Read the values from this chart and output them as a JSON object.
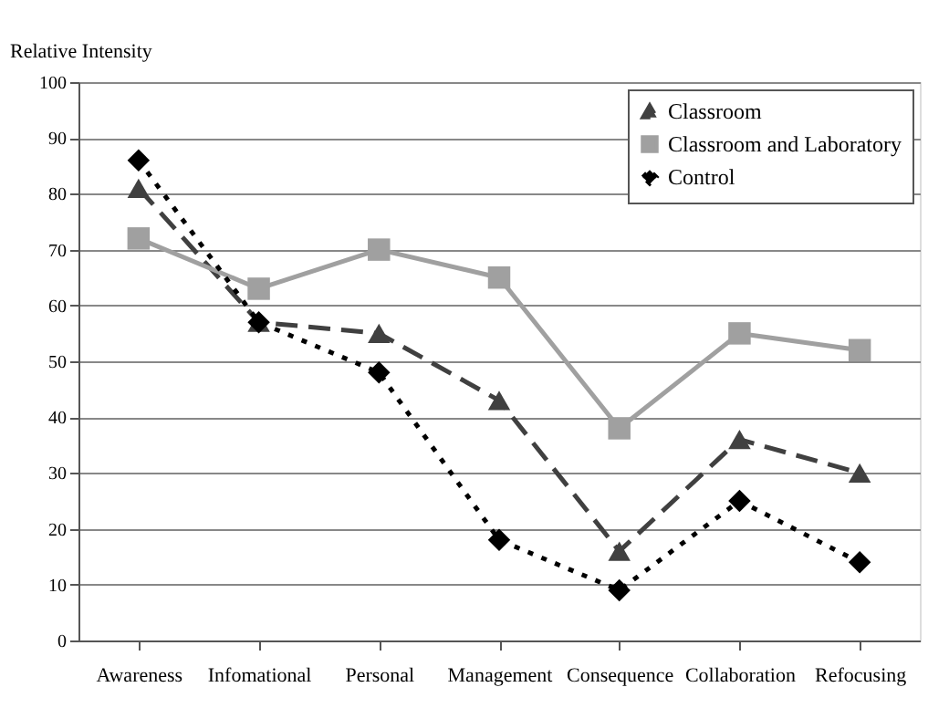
{
  "chart_data": {
    "type": "line",
    "ylabel": "Relative Intensity",
    "categories": [
      "Awareness",
      "Infomational",
      "Personal",
      "Management",
      "Consequence",
      "Collaboration",
      "Refocusing"
    ],
    "series": [
      {
        "name": "Classroom",
        "color": "#404040",
        "marker": "triangle",
        "line_style": "dashed",
        "values": [
          81,
          57,
          55,
          43,
          16,
          36,
          30
        ]
      },
      {
        "name": "Classroom and Laboratory",
        "color": "#a0a0a0",
        "marker": "square",
        "line_style": "solid",
        "values": [
          72,
          63,
          70,
          65,
          38,
          55,
          52
        ]
      },
      {
        "name": "Control",
        "color": "#000000",
        "marker": "diamond",
        "line_style": "dotted",
        "values": [
          86,
          57,
          48,
          18,
          9,
          25,
          14
        ]
      }
    ],
    "ylim": [
      0,
      100
    ],
    "yticks": [
      0,
      10,
      20,
      30,
      40,
      50,
      60,
      70,
      80,
      90,
      100
    ],
    "grid": "y",
    "legend": "top right"
  }
}
